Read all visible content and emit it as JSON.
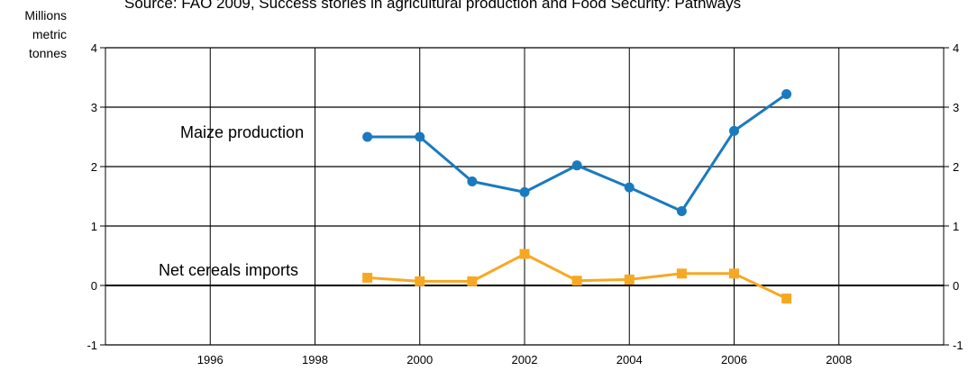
{
  "source_note": "Source: FAO 2009, Success stories in agricultural production and Food Security: Pathways",
  "unit_label": [
    "Millions",
    "metric",
    "tonnes"
  ],
  "chart_data": {
    "type": "line",
    "title": "",
    "xlabel": "",
    "ylabel": "Millions metric tonnes",
    "xlim": [
      1994,
      2010
    ],
    "ylim": [
      -1,
      4
    ],
    "x_ticks": [
      1996,
      1998,
      2000,
      2002,
      2004,
      2006,
      2008
    ],
    "y_ticks": [
      -1,
      0,
      1,
      2,
      3,
      4
    ],
    "grid": true,
    "series": [
      {
        "name": "Maize production",
        "color": "#1a7abf",
        "marker": "circle",
        "x": [
          1999,
          2000,
          2001,
          2002,
          2003,
          2004,
          2005,
          2006,
          2007
        ],
        "values": [
          2.5,
          2.5,
          1.75,
          1.57,
          2.02,
          1.65,
          1.25,
          2.6,
          3.22
        ]
      },
      {
        "name": "Net cereals imports",
        "color": "#f7a823",
        "marker": "square",
        "x": [
          1999,
          2000,
          2001,
          2002,
          2003,
          2004,
          2005,
          2006,
          2007
        ],
        "values": [
          0.13,
          0.07,
          0.07,
          0.53,
          0.08,
          0.1,
          0.2,
          0.2,
          -0.22
        ]
      }
    ]
  }
}
